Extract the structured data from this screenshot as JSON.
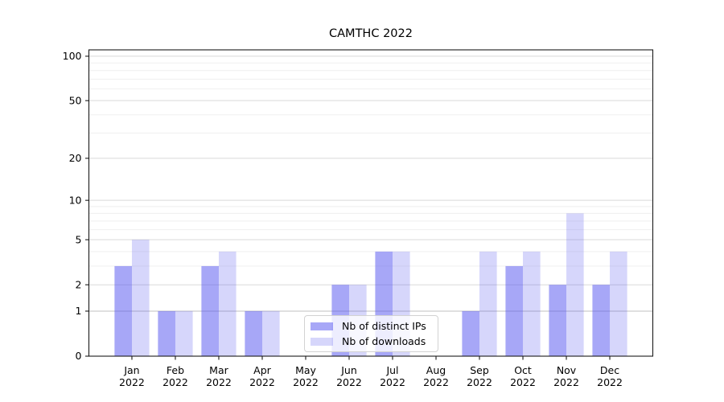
{
  "title": "CAMTHC 2022",
  "legend": {
    "items": [
      {
        "label": "Nb of distinct IPs",
        "color": "rgba(80,80,240,0.5)"
      },
      {
        "label": "Nb of downloads",
        "color": "rgba(80,80,240,0.235)"
      }
    ],
    "position": "lower center"
  },
  "chart_data": {
    "type": "bar",
    "title": "CAMTHC 2022",
    "xlabel": "",
    "ylabel": "",
    "scale": "log1p",
    "grid": "horizontal",
    "categories": [
      "Jan",
      "Feb",
      "Mar",
      "Apr",
      "May",
      "Jun",
      "Jul",
      "Aug",
      "Sep",
      "Oct",
      "Nov",
      "Dec"
    ],
    "category_year": "2022",
    "series": [
      {
        "name": "Nb of distinct IPs",
        "color": "rgba(80,80,240,0.5)",
        "values": [
          3,
          1,
          3,
          1,
          0,
          2,
          4,
          0,
          1,
          3,
          2,
          2
        ]
      },
      {
        "name": "Nb of downloads",
        "color": "rgba(80,80,240,0.235)",
        "values": [
          5,
          1,
          4,
          1,
          0,
          2,
          4,
          0,
          4,
          4,
          8,
          4
        ]
      }
    ],
    "y_ticks_major": [
      0,
      1,
      2,
      5,
      10,
      20,
      50,
      100
    ],
    "y_ticks_minor": [
      3,
      4,
      6,
      7,
      8,
      9,
      30,
      40,
      60,
      70,
      80,
      90
    ],
    "ylim": [
      0,
      110.4
    ]
  },
  "colors": {
    "bar_dark": "rgba(80,80,240,0.5)",
    "bar_light": "rgba(80,80,240,0.235)",
    "grid_major": "#d9d9d9",
    "grid_major_emph": "#c0c0c0",
    "grid_minor": "#eeeeee",
    "spine": "#1a1a1a",
    "text": "#000000"
  }
}
